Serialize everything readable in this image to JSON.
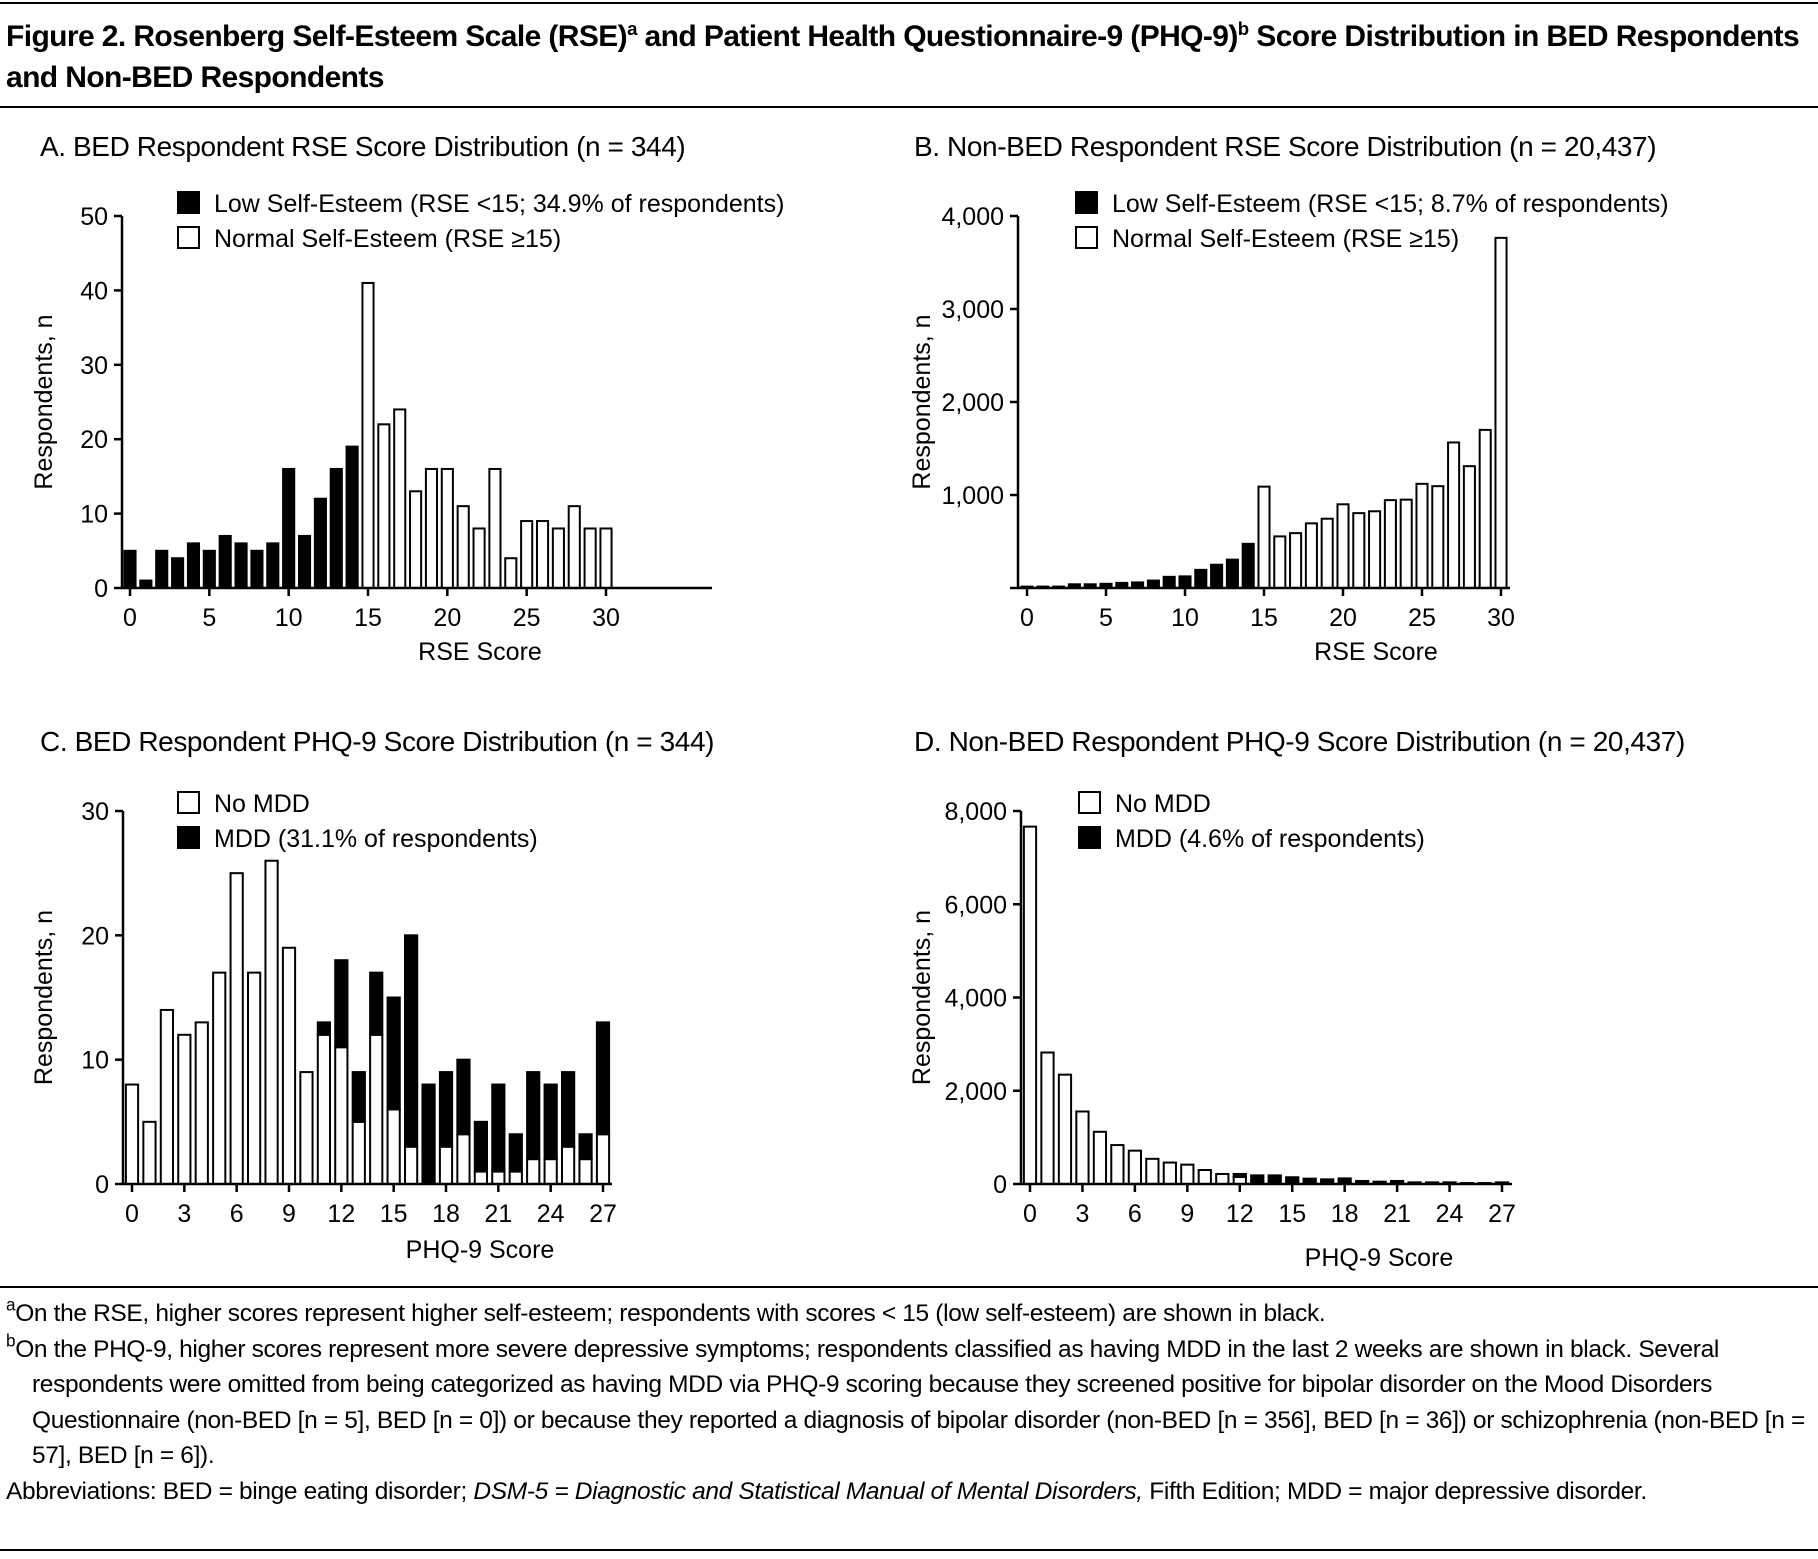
{
  "figure": {
    "title_part1": "Figure 2. Rosenberg Self-Esteem Scale (RSE)",
    "title_sup1": "a",
    "title_part2": " and Patient Health Questionnaire-9 (PHQ-9)",
    "title_sup2": "b",
    "title_part3": " Score Distribution in BED Respondents and Non-BED Respondents"
  },
  "chart_data": [
    {
      "type": "bar",
      "title": "A. BED Respondent RSE Score Distribution (n = 344)",
      "xlabel": "RSE Score",
      "ylabel": "Respondents, n",
      "ylim": [
        0,
        50
      ],
      "yticks": [
        "0",
        "10",
        "20",
        "30",
        "40",
        "50"
      ],
      "xticks": [
        "0",
        "5",
        "10",
        "15",
        "20",
        "25",
        "30"
      ],
      "grid": false,
      "legend_position": "top",
      "legend": [
        {
          "label": "Low Self-Esteem (RSE <15; 34.9% of respondents)",
          "color": "#000000"
        },
        {
          "label": "Normal Self-Esteem (RSE ≥15)",
          "color": "#ffffff"
        }
      ],
      "x": [
        0,
        1,
        2,
        3,
        4,
        5,
        6,
        7,
        8,
        9,
        10,
        11,
        12,
        13,
        14,
        15,
        16,
        17,
        18,
        19,
        20,
        21,
        22,
        23,
        24,
        25,
        26,
        27,
        28,
        29,
        30
      ],
      "values": [
        5,
        1,
        5,
        4,
        6,
        5,
        7,
        6,
        5,
        6,
        16,
        7,
        12,
        16,
        19,
        41,
        22,
        24,
        13,
        16,
        16,
        11,
        8,
        16,
        4,
        9,
        9,
        8,
        11,
        8,
        8
      ],
      "black_below": 15
    },
    {
      "type": "bar",
      "title": "B. Non-BED Respondent RSE Score Distribution (n = 20,437)",
      "xlabel": "RSE Score",
      "ylabel": "Respondents, n",
      "ylim": [
        0,
        4000
      ],
      "yticks": [
        "",
        "1,000",
        "2,000",
        "3,000",
        "4,000"
      ],
      "xticks": [
        "0",
        "5",
        "10",
        "15",
        "20",
        "25",
        "30"
      ],
      "grid": false,
      "legend_position": "top",
      "legend": [
        {
          "label": "Low Self-Esteem (RSE <15; 8.7% of respondents)",
          "color": "#000000"
        },
        {
          "label": "Normal Self-Esteem (RSE ≥15)",
          "color": "#ffffff"
        }
      ],
      "x": [
        0,
        1,
        2,
        3,
        4,
        5,
        6,
        7,
        8,
        9,
        10,
        11,
        12,
        13,
        14,
        15,
        16,
        17,
        18,
        19,
        20,
        21,
        22,
        23,
        24,
        25,
        26,
        27,
        28,
        29,
        30
      ],
      "values": [
        15,
        15,
        15,
        40,
        40,
        45,
        55,
        60,
        80,
        120,
        125,
        195,
        250,
        305,
        475,
        1090,
        555,
        590,
        695,
        745,
        900,
        805,
        825,
        945,
        950,
        1120,
        1095,
        1565,
        1310,
        1700,
        3765
      ],
      "black_below": 15
    },
    {
      "type": "bar",
      "stacked": true,
      "title": "C. BED Respondent PHQ-9 Score Distribution (n = 344)",
      "xlabel": "PHQ-9 Score",
      "ylabel": "Respondents, n",
      "ylim": [
        0,
        30
      ],
      "yticks": [
        "0",
        "10",
        "20",
        "30"
      ],
      "xticks": [
        "0",
        "3",
        "6",
        "9",
        "12",
        "15",
        "18",
        "21",
        "24",
        "27"
      ],
      "grid": false,
      "legend_position": "top",
      "legend": [
        {
          "label": "No MDD",
          "color": "#ffffff"
        },
        {
          "label": "MDD (31.1% of respondents)",
          "color": "#000000"
        }
      ],
      "x": [
        0,
        1,
        2,
        3,
        4,
        5,
        6,
        7,
        8,
        9,
        10,
        11,
        12,
        13,
        14,
        15,
        16,
        17,
        18,
        19,
        20,
        21,
        22,
        23,
        24,
        25,
        26,
        27
      ],
      "series": [
        {
          "name": "No MDD",
          "values": [
            8,
            5,
            14,
            12,
            13,
            17,
            25,
            17,
            26,
            19,
            9,
            12,
            11,
            5,
            12,
            6,
            3,
            0,
            3,
            4,
            1,
            1,
            1,
            2,
            2,
            3,
            2,
            4
          ]
        },
        {
          "name": "MDD",
          "values": [
            0,
            0,
            0,
            0,
            0,
            0,
            0,
            0,
            0,
            0,
            0,
            1,
            7,
            4,
            5,
            9,
            17,
            8,
            6,
            6,
            4,
            7,
            3,
            7,
            6,
            6,
            2,
            9
          ]
        }
      ]
    },
    {
      "type": "bar",
      "stacked": true,
      "title": "D. Non-BED Respondent PHQ-9 Score Distribution (n = 20,437)",
      "xlabel": "PHQ-9 Score",
      "ylabel": "Respondents, n",
      "ylim": [
        0,
        8000
      ],
      "yticks": [
        "0",
        "2,000",
        "4,000",
        "6,000",
        "8,000"
      ],
      "xticks": [
        "0",
        "3",
        "6",
        "9",
        "12",
        "15",
        "18",
        "21",
        "24",
        "27"
      ],
      "grid": false,
      "legend_position": "top",
      "legend": [
        {
          "label": "No MDD",
          "color": "#ffffff"
        },
        {
          "label": "MDD (4.6% of respondents)",
          "color": "#000000"
        }
      ],
      "x": [
        0,
        1,
        2,
        3,
        4,
        5,
        6,
        7,
        8,
        9,
        10,
        11,
        12,
        13,
        14,
        15,
        16,
        17,
        18,
        19,
        20,
        21,
        22,
        23,
        24,
        25,
        26,
        27
      ],
      "series": [
        {
          "name": "No MDD",
          "values": [
            7665,
            2820,
            2345,
            1555,
            1120,
            835,
            715,
            540,
            460,
            415,
            300,
            215,
            150,
            40,
            10,
            0,
            0,
            0,
            0,
            0,
            0,
            0,
            0,
            0,
            0,
            0,
            0,
            0
          ]
        },
        {
          "name": "MDD",
          "values": [
            0,
            0,
            0,
            0,
            0,
            0,
            0,
            0,
            0,
            0,
            0,
            0,
            65,
            145,
            175,
            145,
            115,
            100,
            120,
            65,
            50,
            65,
            35,
            35,
            35,
            20,
            20,
            35
          ]
        }
      ]
    }
  ],
  "footnotes": {
    "a_sup": "a",
    "a_text": "On the RSE, higher scores represent higher self-esteem; respondents with scores < 15 (low self-esteem) are shown in black.",
    "b_sup": "b",
    "b_text": "On the PHQ-9, higher scores represent more severe depressive symptoms; respondents classified as having MDD in the last 2 weeks are shown in black. Several respondents were omitted from being categorized as having MDD via PHQ-9 scoring because they screened positive for bipolar disorder on the Mood Disorders Questionnaire (non-BED [n = 5], BED [n = 0]) or because they reported a diagnosis of bipolar disorder (non-BED [n = 356], BED [n = 36]) or schizophrenia (non-BED [n = 57], BED [n = 6]).",
    "abbr_1": "Abbreviations: BED = binge eating disorder; ",
    "abbr_italic": "DSM-5 = Diagnostic and Statistical Manual of Mental Disorders,",
    "abbr_2": " Fifth Edition; MDD = major depressive disorder."
  }
}
